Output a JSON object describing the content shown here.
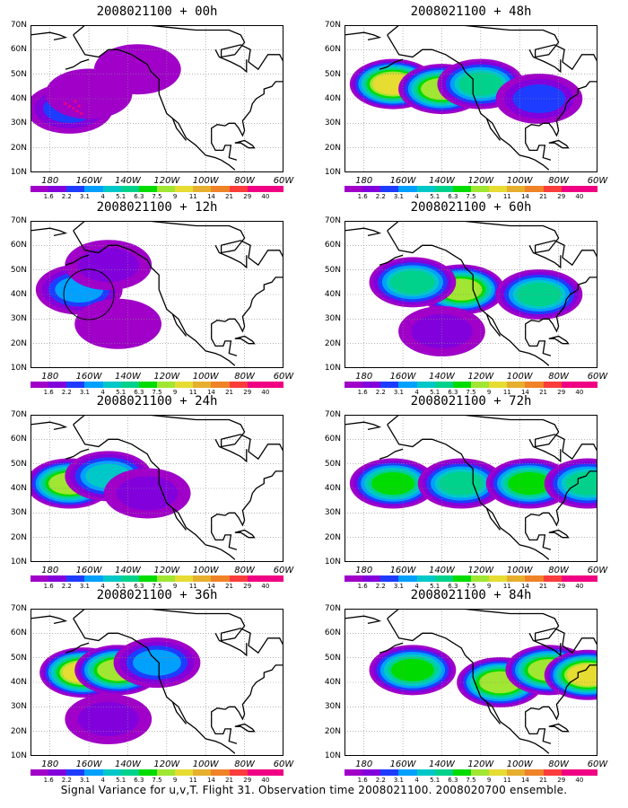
{
  "footer": "Signal Variance for u,v,T. Flight 31. Observation time 2008021100. 2008020700 ensemble.",
  "colorbar": {
    "labels": [
      "1.6",
      "2.2",
      "3.1",
      "4",
      "5.1",
      "6.3",
      "7.5",
      "9",
      "11",
      "14",
      "21",
      "29",
      "40"
    ],
    "colors": [
      "#a000c8",
      "#8200dc",
      "#1e3cff",
      "#00a0ff",
      "#00c8c8",
      "#00d28c",
      "#00dc00",
      "#a0e632",
      "#e6dc32",
      "#e6af2d",
      "#f08228",
      "#fa3c3c",
      "#f00082"
    ]
  },
  "axes": {
    "y_ticks": [
      "70N",
      "60N",
      "50N",
      "40N",
      "30N",
      "20N",
      "10N"
    ],
    "x_ticks": [
      "180",
      "160W",
      "140W",
      "120W",
      "100W",
      "80W",
      "60W"
    ],
    "lon_range": [
      -190,
      -60
    ],
    "lat_range": [
      10,
      70
    ],
    "grid": "dotted"
  },
  "chart_data": [
    {
      "type": "heatmap",
      "title": "2008021100 + 00h",
      "lead_hours": 0,
      "annotation": "circle-none",
      "blobs": [
        {
          "lon": -170,
          "lat": 36,
          "peak": 3.1
        },
        {
          "lon": -160,
          "lat": 42,
          "peak": 1.6
        },
        {
          "lon": -135,
          "lat": 52,
          "peak": 1.6
        }
      ]
    },
    {
      "type": "heatmap",
      "title": "2008021100 + 12h",
      "lead_hours": 12,
      "annotation": "circle at 160W 40N",
      "blobs": [
        {
          "lon": -165,
          "lat": 42,
          "peak": 4
        },
        {
          "lon": -150,
          "lat": 52,
          "peak": 2.2
        },
        {
          "lon": -145,
          "lat": 28,
          "peak": 1.6
        }
      ]
    },
    {
      "type": "heatmap",
      "title": "2008021100 + 24h",
      "lead_hours": 24,
      "blobs": [
        {
          "lon": -170,
          "lat": 42,
          "peak": 9
        },
        {
          "lon": -150,
          "lat": 45,
          "peak": 5.1
        },
        {
          "lon": -130,
          "lat": 38,
          "peak": 2.2
        }
      ]
    },
    {
      "type": "heatmap",
      "title": "2008021100 + 36h",
      "lead_hours": 36,
      "blobs": [
        {
          "lon": -163,
          "lat": 44,
          "peak": 11
        },
        {
          "lon": -145,
          "lat": 45,
          "peak": 9
        },
        {
          "lon": -125,
          "lat": 48,
          "peak": 4
        },
        {
          "lon": -150,
          "lat": 25,
          "peak": 2.2
        }
      ]
    },
    {
      "type": "heatmap",
      "title": "2008021100 + 48h",
      "lead_hours": 48,
      "blobs": [
        {
          "lon": -165,
          "lat": 46,
          "peak": 11
        },
        {
          "lon": -140,
          "lat": 44,
          "peak": 9
        },
        {
          "lon": -120,
          "lat": 46,
          "peak": 6.3
        },
        {
          "lon": -90,
          "lat": 40,
          "peak": 3.1
        }
      ]
    },
    {
      "type": "heatmap",
      "title": "2008021100 + 60h",
      "lead_hours": 60,
      "blobs": [
        {
          "lon": -130,
          "lat": 42,
          "peak": 9
        },
        {
          "lon": -155,
          "lat": 45,
          "peak": 6.3
        },
        {
          "lon": -90,
          "lat": 40,
          "peak": 6.3
        },
        {
          "lon": -140,
          "lat": 25,
          "peak": 2.2
        }
      ]
    },
    {
      "type": "heatmap",
      "title": "2008021100 + 72h",
      "lead_hours": 72,
      "blobs": [
        {
          "lon": -165,
          "lat": 42,
          "peak": 7.5
        },
        {
          "lon": -130,
          "lat": 42,
          "peak": 6.3
        },
        {
          "lon": -95,
          "lat": 42,
          "peak": 7.5
        },
        {
          "lon": -65,
          "lat": 42,
          "peak": 6.3
        }
      ]
    },
    {
      "type": "heatmap",
      "title": "2008021100 + 84h",
      "lead_hours": 84,
      "blobs": [
        {
          "lon": -155,
          "lat": 45,
          "peak": 7.5
        },
        {
          "lon": -110,
          "lat": 40,
          "peak": 9
        },
        {
          "lon": -85,
          "lat": 45,
          "peak": 9
        },
        {
          "lon": -65,
          "lat": 43,
          "peak": 11
        }
      ]
    }
  ]
}
